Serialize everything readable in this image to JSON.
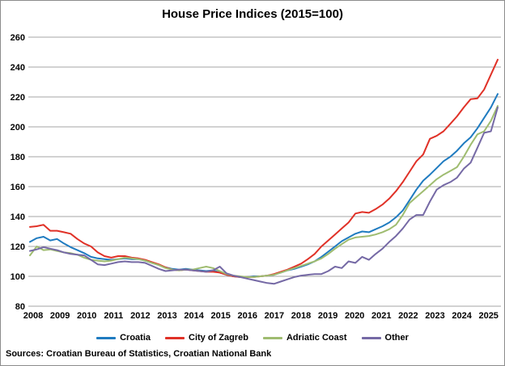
{
  "chart_data": {
    "type": "line",
    "title": "House Price Indices (2015=100)",
    "x_frequency": "quarterly",
    "x_range": "2008Q1-2025Q2",
    "year_ticks": [
      "2008",
      "2009",
      "2010",
      "2011",
      "2012",
      "2013",
      "2014",
      "2015",
      "2016",
      "2017",
      "2018",
      "2019",
      "2020",
      "2021",
      "2022",
      "2023",
      "2024",
      "2025"
    ],
    "y_ticks": [
      80,
      100,
      120,
      140,
      160,
      180,
      200,
      220,
      240,
      260
    ],
    "ylim": [
      80,
      260
    ],
    "grid": true,
    "grid_color": "#a6a6a6",
    "legend_position": "bottom",
    "source_note": "Sources: Croatian Bureau of Statistics, Croatian National Bank",
    "series": [
      {
        "name": "Croatia",
        "color": "#1f7bc0",
        "values": [
          123,
          125.5,
          126.5,
          124,
          125,
          122,
          119.5,
          117.5,
          115.5,
          113,
          112,
          111.5,
          111,
          111.5,
          112,
          111.5,
          111.5,
          110.5,
          109,
          107.5,
          106,
          105,
          104.5,
          105,
          104.5,
          104,
          103.5,
          104,
          102.5,
          101,
          100,
          99.5,
          99.5,
          100,
          100,
          100.5,
          101,
          102.5,
          104,
          105,
          106.5,
          108,
          110,
          113,
          116.5,
          120,
          123.5,
          126,
          128.5,
          130,
          129.5,
          131.5,
          133.5,
          136,
          139.5,
          144,
          151,
          158,
          164,
          168,
          172.5,
          177,
          180,
          184,
          189,
          193,
          199,
          206,
          213,
          222
        ]
      },
      {
        "name": "City of Zagreb",
        "color": "#e03127",
        "values": [
          133,
          133.5,
          134.5,
          130.5,
          130.5,
          129.5,
          128.5,
          125,
          122,
          120,
          116,
          113.5,
          112.5,
          113.5,
          113.5,
          112.5,
          112,
          111,
          109.5,
          108,
          106,
          104.5,
          104,
          104.5,
          104,
          103.5,
          103,
          103,
          102.5,
          101,
          100,
          99.5,
          99.5,
          99.5,
          100,
          100.5,
          101.5,
          103,
          104.5,
          106.5,
          108.5,
          111.5,
          115,
          120,
          124,
          128,
          132,
          136,
          142,
          143,
          142.5,
          145,
          148,
          152,
          157,
          163,
          170,
          177,
          181.5,
          192,
          194,
          197,
          202,
          207,
          213,
          218.5,
          219,
          225,
          235,
          245
        ]
      },
      {
        "name": "Adriatic Coast",
        "color": "#9fbc70",
        "values": [
          114,
          120,
          117.5,
          118,
          117,
          116,
          115.5,
          114.5,
          112.5,
          111,
          110.5,
          110,
          110.5,
          111.5,
          112.5,
          112,
          111.5,
          110.5,
          109,
          107.5,
          105.5,
          104.5,
          104,
          104.5,
          104.5,
          105.5,
          106.5,
          105.5,
          103.5,
          101.5,
          100.5,
          100,
          99.5,
          99.5,
          100,
          100.5,
          101,
          102.5,
          104,
          105.5,
          107,
          108.5,
          110,
          112,
          115,
          118.5,
          121.5,
          124.5,
          126,
          126.5,
          127,
          128,
          129.5,
          131.5,
          134.5,
          141,
          149,
          153,
          157,
          161,
          165,
          168,
          170.5,
          173,
          180,
          188,
          195,
          197,
          204,
          214
        ]
      },
      {
        "name": "Other",
        "color": "#7569a5",
        "values": [
          117,
          118,
          119.5,
          118.5,
          117.5,
          116,
          115,
          114.5,
          114,
          111,
          108,
          107.5,
          108.5,
          109.5,
          110,
          109.5,
          109.5,
          109,
          107,
          105,
          103.5,
          104,
          104.5,
          104.5,
          104,
          103.5,
          103,
          104,
          106.5,
          102,
          100.5,
          99.5,
          98.5,
          97.5,
          96.5,
          95.5,
          95,
          96.5,
          98,
          99.5,
          100.5,
          101,
          101.5,
          101.5,
          103.5,
          106.5,
          105.5,
          110,
          109,
          113,
          111,
          115,
          118.5,
          123,
          127,
          132,
          138,
          141,
          141,
          150,
          158,
          161,
          163,
          166,
          172,
          176,
          186,
          196,
          197,
          213
        ]
      }
    ]
  }
}
